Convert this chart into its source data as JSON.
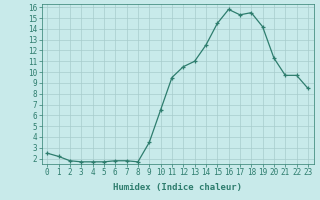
{
  "xlabel": "Humidex (Indice chaleur)",
  "x": [
    0,
    1,
    2,
    3,
    4,
    5,
    6,
    7,
    8,
    9,
    10,
    11,
    12,
    13,
    14,
    15,
    16,
    17,
    18,
    19,
    20,
    21,
    22,
    23
  ],
  "y": [
    2.5,
    2.2,
    1.8,
    1.7,
    1.7,
    1.7,
    1.8,
    1.8,
    1.7,
    3.5,
    6.5,
    9.5,
    10.5,
    11.0,
    12.5,
    14.5,
    15.8,
    15.3,
    15.5,
    14.2,
    11.3,
    9.7,
    9.7,
    8.5
  ],
  "line_color": "#2e7d6e",
  "marker": "+",
  "bg_color": "#c8eaea",
  "grid_color": "#a8cccc",
  "tick_color": "#2e7d6e",
  "label_color": "#2e7d6e",
  "ylim": [
    1.5,
    16.3
  ],
  "xlim": [
    -0.5,
    23.5
  ],
  "yticks": [
    2,
    3,
    4,
    5,
    6,
    7,
    8,
    9,
    10,
    11,
    12,
    13,
    14,
    15,
    16
  ],
  "xticks": [
    0,
    1,
    2,
    3,
    4,
    5,
    6,
    7,
    8,
    9,
    10,
    11,
    12,
    13,
    14,
    15,
    16,
    17,
    18,
    19,
    20,
    21,
    22,
    23
  ],
  "xtick_labels": [
    "0",
    "1",
    "2",
    "3",
    "4",
    "5",
    "6",
    "7",
    "8",
    "9",
    "10",
    "11",
    "12",
    "13",
    "14",
    "15",
    "16",
    "17",
    "18",
    "19",
    "20",
    "21",
    "22",
    "23"
  ],
  "ytick_labels": [
    "2",
    "3",
    "4",
    "5",
    "6",
    "7",
    "8",
    "9",
    "10",
    "11",
    "12",
    "13",
    "14",
    "15",
    "16"
  ],
  "axis_fontsize": 6.5,
  "tick_fontsize": 5.5
}
